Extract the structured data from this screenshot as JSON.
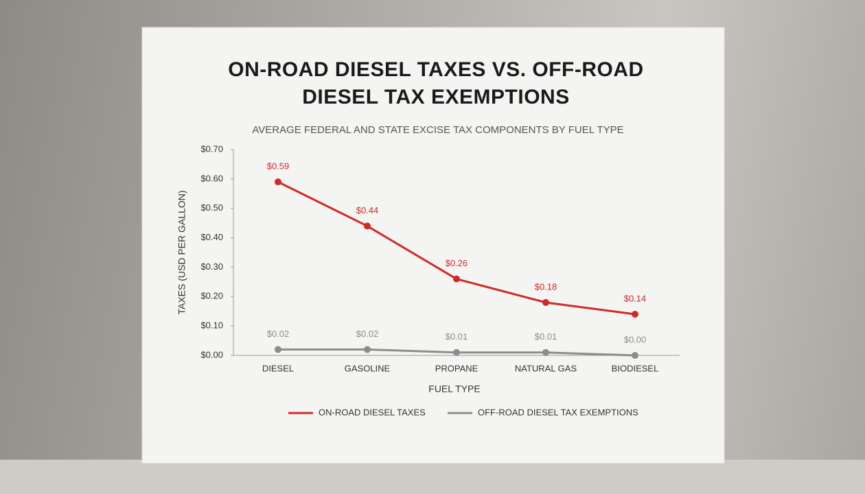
{
  "chart_data": {
    "type": "line",
    "title": "ON-ROAD DIESEL TAXES VS. OFF-ROAD DIESEL TAX EXEMPTIONS",
    "subtitle": "AVERAGE FEDERAL AND STATE EXCISE TAX COMPONENTS BY FUEL TYPE",
    "x_label": "FUEL TYPE",
    "y_label": "TAXES (USD PER GALLON)",
    "categories": [
      "DIESEL",
      "GASOLINE",
      "PROPANE",
      "NATURAL GAS",
      "BIODIESEL"
    ],
    "series": [
      {
        "name": "ON-ROAD DIESEL TAXES",
        "color": "#d02a2a",
        "values": [
          0.59,
          0.44,
          0.26,
          0.18,
          0.14
        ],
        "value_labels": [
          "$0.59",
          "$0.44",
          "$0.26",
          "$0.18",
          "$0.14"
        ]
      },
      {
        "name": "OFF-ROAD DIESEL TAX EXEMPTIONS",
        "color": "#8c8c8c",
        "values": [
          0.02,
          0.02,
          0.01,
          0.01,
          0
        ],
        "value_labels": [
          "$0.02",
          "$0.02",
          "$0.01",
          "$0.01",
          "$0.00"
        ]
      }
    ],
    "ylim": [
      0,
      0.7
    ],
    "yticks": [
      {
        "value": 0,
        "label": "$0.00"
      },
      {
        "value": 0.1,
        "label": "$0.10"
      },
      {
        "value": 0.2,
        "label": "$0.20"
      },
      {
        "value": 0.3,
        "label": "$0.30"
      },
      {
        "value": 0.4,
        "label": "$0.40"
      },
      {
        "value": 0.5,
        "label": "$0.50"
      },
      {
        "value": 0.6,
        "label": "$0.60"
      },
      {
        "value": 0.7,
        "label": "$0.70"
      }
    ],
    "grid": false,
    "legend": "bottom"
  }
}
